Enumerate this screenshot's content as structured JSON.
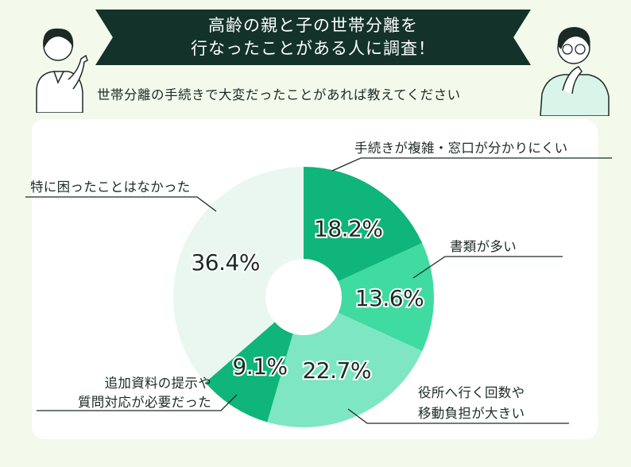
{
  "title_line1": "高齢の親と子の世帯分離を",
  "title_line2": "行なったことがある人に調査！",
  "subtitle": "世帯分離の手続きで大変だったことがあれば教えてください",
  "colors": {
    "background": "#f3faeb",
    "banner": "#13322a",
    "card": "#ffffff",
    "slice_dark": "#0fb57a",
    "slice_mid": "#3fdba1",
    "slice_light": "#7ee6c3",
    "slice_pale": "#e9f7f0"
  },
  "chart_data": {
    "type": "pie",
    "donut": true,
    "title": "世帯分離の手続きで大変だったことがあれば教えてください",
    "slices": [
      {
        "label_lines": [
          "手続きが複雑・窓口が分かりにくい"
        ],
        "value": 18.2,
        "display": "18.2%",
        "color": "#0fb57a"
      },
      {
        "label_lines": [
          "書類が多い"
        ],
        "value": 13.6,
        "display": "13.6%",
        "color": "#3fdba1"
      },
      {
        "label_lines": [
          "役所へ行く回数や",
          "移動負担が大きい"
        ],
        "value": 22.7,
        "display": "22.7%",
        "color": "#7ee6c3"
      },
      {
        "label_lines": [
          "追加資料の提示や",
          "質問対応が必要だった"
        ],
        "value": 9.1,
        "display": "9.1%",
        "color": "#0fb57a"
      },
      {
        "label_lines": [
          "特に困ったことはなかった"
        ],
        "value": 36.4,
        "display": "36.4%",
        "color": "#e9f7f0"
      }
    ]
  }
}
